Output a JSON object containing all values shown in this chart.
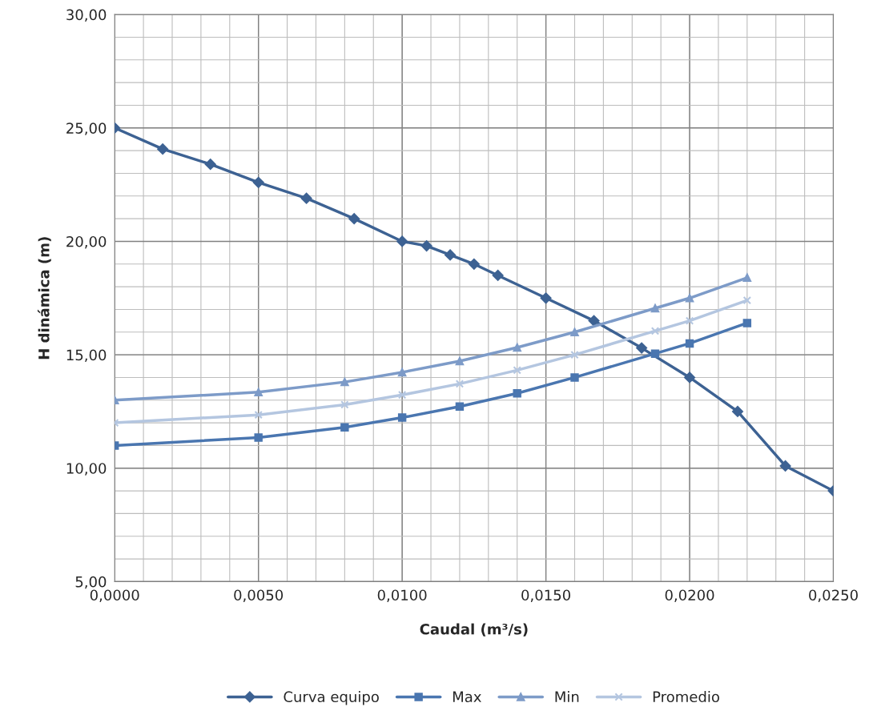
{
  "chart_data": {
    "type": "line",
    "xlabel": "Caudal (m³/s)",
    "ylabel": "H dinámica (m)",
    "xlim": [
      0,
      0.025
    ],
    "ylim": [
      5,
      30
    ],
    "xticks": [
      {
        "value": 0,
        "label": "0,0000"
      },
      {
        "value": 0.005,
        "label": "0,0050"
      },
      {
        "value": 0.01,
        "label": "0,0100"
      },
      {
        "value": 0.015,
        "label": "0,0150"
      },
      {
        "value": 0.02,
        "label": "0,0200"
      },
      {
        "value": 0.025,
        "label": "0,0250"
      }
    ],
    "yticks": [
      {
        "value": 5,
        "label": "5,00"
      },
      {
        "value": 10,
        "label": "10,00"
      },
      {
        "value": 15,
        "label": "15,00"
      },
      {
        "value": 20,
        "label": "20,00"
      },
      {
        "value": 25,
        "label": "25,00"
      },
      {
        "value": 30,
        "label": "30,00"
      }
    ],
    "grid": true,
    "legend": "bottom",
    "series": [
      {
        "name": "Curva equipo",
        "color": "#3d6293",
        "marker": "diamond",
        "x": [
          0,
          0.00167,
          0.00333,
          0.005,
          0.00667,
          0.00833,
          0.01,
          0.01085,
          0.01167,
          0.0125,
          0.01333,
          0.015,
          0.01667,
          0.01833,
          0.02,
          0.02167,
          0.02333,
          0.025
        ],
        "values": [
          25.0,
          24.07,
          23.4,
          22.6,
          21.9,
          21.0,
          20.0,
          19.8,
          19.4,
          19.0,
          18.5,
          17.5,
          16.5,
          15.3,
          14.0,
          12.5,
          10.1,
          9.0
        ]
      },
      {
        "name": "Max",
        "color": "#4a76b0",
        "marker": "square",
        "x": [
          0,
          0.005,
          0.008,
          0.01,
          0.012,
          0.014,
          0.016,
          0.0188,
          0.02,
          0.022
        ],
        "values": [
          11.0,
          11.35,
          11.8,
          12.23,
          12.72,
          13.3,
          14.0,
          15.05,
          15.5,
          16.4
        ]
      },
      {
        "name": "Min",
        "color": "#7d9bc8",
        "marker": "triangle",
        "x": [
          0,
          0.005,
          0.008,
          0.01,
          0.012,
          0.014,
          0.016,
          0.0188,
          0.02,
          0.022
        ],
        "values": [
          13.0,
          13.35,
          13.8,
          14.23,
          14.72,
          15.32,
          16.0,
          17.05,
          17.5,
          18.4
        ]
      },
      {
        "name": "Promedio",
        "color": "#b4c6e0",
        "marker": "cross",
        "x": [
          0,
          0.005,
          0.008,
          0.01,
          0.012,
          0.014,
          0.016,
          0.0188,
          0.02,
          0.022
        ],
        "values": [
          12.0,
          12.35,
          12.8,
          13.23,
          13.72,
          14.32,
          15.0,
          16.05,
          16.5,
          17.4
        ]
      }
    ]
  }
}
